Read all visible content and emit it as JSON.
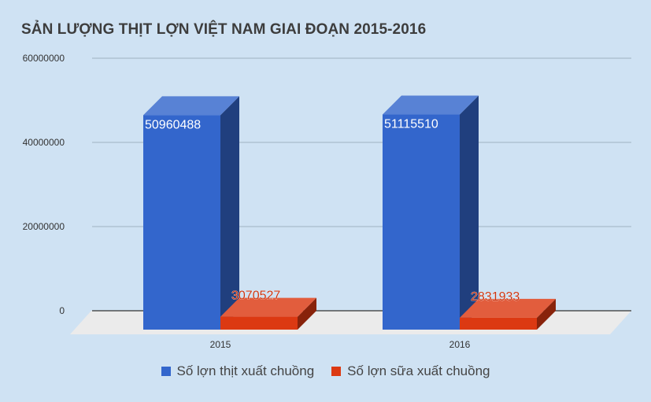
{
  "chart_data": {
    "type": "bar",
    "title": "SẢN LƯỢNG THỊT LỢN VIỆT NAM GIAI ĐOẠN 2015-2016",
    "categories": [
      "2015",
      "2016"
    ],
    "series": [
      {
        "name": "Số lợn thịt xuất chuồng",
        "values": [
          50960488,
          51115510
        ],
        "color": "#3366cc",
        "labels": [
          "50960488",
          "51115510"
        ]
      },
      {
        "name": "Số lợn sữa xuất chuồng",
        "values": [
          3070527,
          2831933
        ],
        "color": "#dc3912",
        "labels": [
          "3070527",
          "2831933"
        ]
      }
    ],
    "y_ticks": [
      "0",
      "20000000",
      "40000000",
      "60000000"
    ],
    "ylim": [
      0,
      60000000
    ],
    "grid": true,
    "legend": "bottom",
    "style": "3d"
  }
}
